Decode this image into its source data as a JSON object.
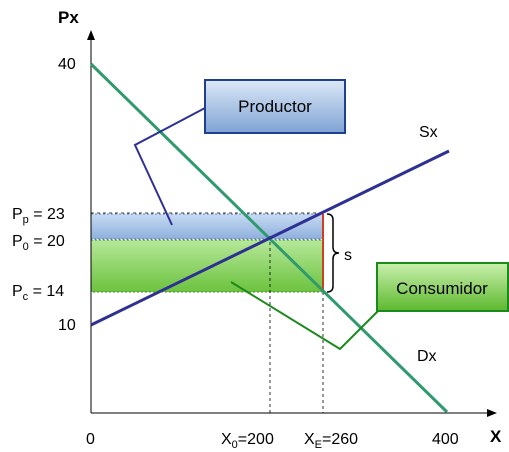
{
  "axes": {
    "y_label": "Px",
    "x_label": "X",
    "origin_label": "0",
    "x_ticks": [
      {
        "value": 200,
        "main": "X",
        "sub": "0",
        "suffix": "=200"
      },
      {
        "value": 260,
        "main": "X",
        "sub": "E",
        "suffix": "=260"
      },
      {
        "value": 400,
        "main": "400",
        "sub": "",
        "suffix": ""
      }
    ],
    "y_ticks": [
      {
        "value": 40,
        "main": "40",
        "sub": "",
        "suffix": ""
      },
      {
        "value": 23,
        "main": "P",
        "sub": "p",
        "suffix": " = 23"
      },
      {
        "value": 20,
        "main": "P",
        "sub": "0",
        "suffix": " = 20"
      },
      {
        "value": 14,
        "main": "P",
        "sub": "c",
        "suffix": " = 14"
      },
      {
        "value": 10,
        "main": "10",
        "sub": "",
        "suffix": ""
      }
    ]
  },
  "curves": {
    "supply": {
      "label": "Sx",
      "color": "#2e3192"
    },
    "demand": {
      "label": "Dx",
      "color": "#2e9a6e"
    }
  },
  "subsidy_label": "s",
  "callouts": {
    "producer": {
      "label": "Productor",
      "fill": "#9bbbe0",
      "stroke": "#1f3f8f"
    },
    "consumer": {
      "label": "Consumidor",
      "fill": "#8cd66a",
      "stroke": "#1a8a1a"
    }
  },
  "colors": {
    "producer_area": "#b5cdee",
    "consumer_area": "#8fd86a",
    "pointer_producer": "#2e3192",
    "pointer_consumer": "#1a8a1a",
    "marker": "#d04020"
  }
}
